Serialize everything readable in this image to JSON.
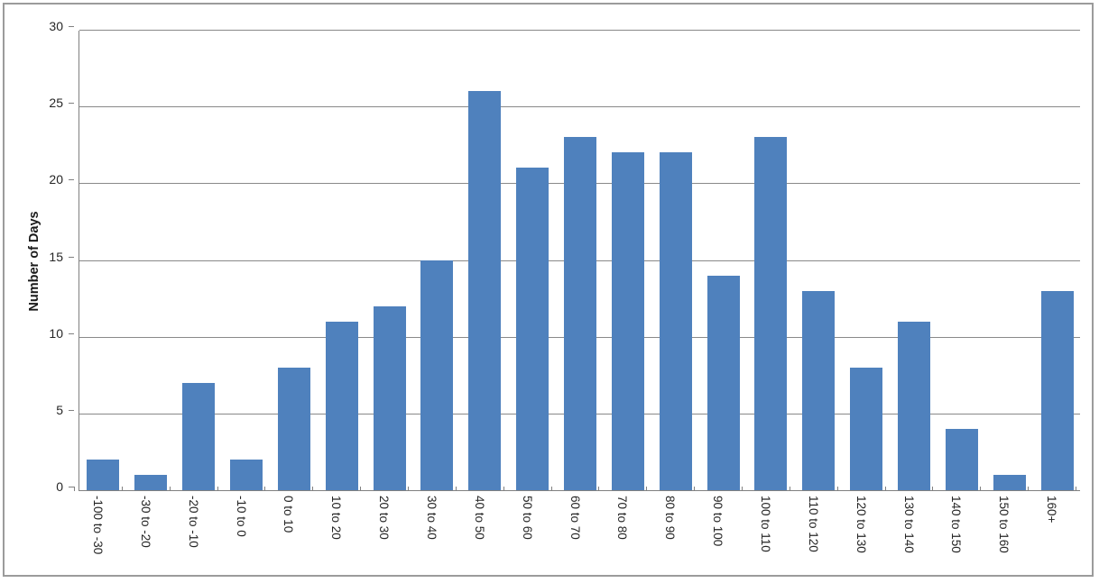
{
  "chart_data": {
    "type": "bar",
    "categories": [
      "-100 to -30",
      "-30 to -20",
      "-20 to -10",
      "-10 to 0",
      "0 to 10",
      "10 to 20",
      "20 to 30",
      "30 to 40",
      "40 to 50",
      "50 to 60",
      "60 to 70",
      "70 to 80",
      "80 to 90",
      "90 to 100",
      "100 to 110",
      "110 to 120",
      "120 to 130",
      "130 to 140",
      "140 to 150",
      "150 to 160",
      "160+"
    ],
    "values": [
      2,
      1,
      7,
      2,
      8,
      11,
      12,
      15,
      26,
      21,
      23,
      22,
      22,
      14,
      23,
      13,
      8,
      11,
      4,
      1,
      13
    ],
    "title": "",
    "xlabel": "",
    "ylabel": "Number of Days",
    "ylim": [
      0,
      30
    ],
    "ytick_step": 5,
    "yticks": [
      0,
      5,
      10,
      15,
      20,
      25,
      30
    ],
    "grid": true,
    "legend": "none",
    "bar_color": "#4F81BD",
    "gridline_color": "#898989",
    "axis_color": "#808080",
    "text_color": "#262626",
    "frame_color": "#9b9b9b"
  }
}
